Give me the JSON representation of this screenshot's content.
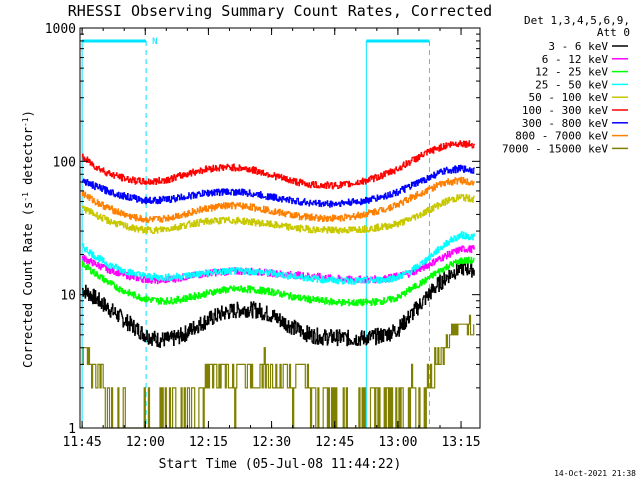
{
  "chart_data": {
    "type": "line",
    "title": "RHESSI Observing Summary Count Rates, Corrected",
    "xlabel": "Start Time (05-Jul-08 11:44:22)",
    "ylabel_prefix": "Corrected Count Rate (s",
    "ylabel_sup1": "-1",
    "ylabel_mid": " detector",
    "ylabel_sup2": "-1",
    "ylabel_suffix": ")",
    "y_scale": "log",
    "ylim": [
      1,
      1000
    ],
    "xlim_min": [
      -0.5,
      94.5
    ],
    "x_ticks": [
      {
        "min": 0,
        "label": "11:45"
      },
      {
        "min": 15,
        "label": "12:00"
      },
      {
        "min": 30,
        "label": "12:15"
      },
      {
        "min": 45,
        "label": "12:30"
      },
      {
        "min": 60,
        "label": "12:45"
      },
      {
        "min": 75,
        "label": "13:00"
      },
      {
        "min": 90,
        "label": "13:15"
      }
    ],
    "y_ticks": [
      {
        "value": 1,
        "label": "1"
      },
      {
        "value": 10,
        "label": "10"
      },
      {
        "value": 100,
        "label": "100"
      },
      {
        "value": 1000,
        "label": "1000"
      }
    ],
    "legend_header": [
      "Det 1,3,4,5,6,9,",
      "Att 0"
    ],
    "legend_position": "right",
    "night_intervals": [
      {
        "start_min": 0,
        "end_min": 15.2,
        "label": "N"
      },
      {
        "start_min": 67.5,
        "end_min": 82.5,
        "label": ""
      }
    ],
    "saa_lines_min": [
      0,
      15.2,
      67.5,
      82.5
    ],
    "night_bar_color": "#00e5ff",
    "timestamp": "14-Oct-2021 21:38",
    "series": [
      {
        "name": "3 - 6 keV",
        "color": "#000000",
        "x": [
          0,
          3,
          6,
          9,
          12,
          15,
          18,
          21,
          24,
          27,
          30,
          33,
          36,
          39,
          42,
          45,
          48,
          51,
          54,
          57,
          60,
          63,
          66,
          69,
          72,
          75,
          78,
          81,
          84,
          87,
          90,
          93
        ],
        "y": [
          11,
          9.5,
          8,
          6.8,
          5.8,
          5.0,
          4.6,
          4.6,
          5.0,
          5.8,
          6.5,
          7.2,
          7.6,
          7.8,
          7.6,
          7.0,
          6.2,
          5.5,
          5.0,
          4.8,
          4.8,
          4.7,
          4.7,
          4.8,
          5.0,
          5.5,
          7.0,
          9.0,
          11.5,
          14.0,
          16.0,
          15.5
        ]
      },
      {
        "name": "6 - 12 keV",
        "color": "#ff00ff",
        "x": [
          0,
          3,
          6,
          9,
          12,
          15,
          18,
          21,
          24,
          27,
          30,
          33,
          36,
          39,
          42,
          45,
          48,
          51,
          54,
          57,
          60,
          63,
          66,
          69,
          72,
          75,
          78,
          81,
          84,
          87,
          90,
          93
        ],
        "y": [
          19,
          17,
          15.5,
          14.5,
          13.5,
          13.0,
          12.8,
          13.0,
          13.5,
          14.0,
          14.5,
          14.8,
          15.0,
          15.0,
          14.8,
          14.5,
          14.2,
          14.0,
          13.8,
          13.5,
          13.2,
          13.0,
          13.0,
          13.0,
          13.2,
          13.8,
          14.5,
          16.0,
          18.0,
          20.0,
          22.0,
          22.0
        ]
      },
      {
        "name": "12 - 25 keV",
        "color": "#00ff00",
        "x": [
          0,
          3,
          6,
          9,
          12,
          15,
          18,
          21,
          24,
          27,
          30,
          33,
          36,
          39,
          42,
          45,
          48,
          51,
          54,
          57,
          60,
          63,
          66,
          69,
          72,
          75,
          78,
          81,
          84,
          87,
          90,
          93
        ],
        "y": [
          17,
          14.5,
          12.5,
          11.0,
          10.0,
          9.3,
          9.0,
          9.0,
          9.3,
          9.8,
          10.3,
          10.8,
          11.0,
          11.0,
          10.8,
          10.5,
          10.0,
          9.5,
          9.2,
          9.0,
          8.8,
          8.7,
          8.7,
          8.8,
          9.0,
          9.5,
          11.0,
          12.5,
          14.5,
          16.5,
          18.0,
          18.0
        ]
      },
      {
        "name": "25 - 50 keV",
        "color": "#00ffff",
        "x": [
          0,
          3,
          6,
          9,
          12,
          15,
          18,
          21,
          24,
          27,
          30,
          33,
          36,
          39,
          42,
          45,
          48,
          51,
          54,
          57,
          60,
          63,
          66,
          69,
          72,
          75,
          78,
          81,
          84,
          87,
          90,
          93
        ],
        "y": [
          23,
          19.5,
          17,
          15.5,
          14.5,
          13.8,
          13.5,
          13.5,
          13.8,
          14.2,
          14.6,
          14.9,
          15.0,
          15.0,
          14.8,
          14.5,
          14.0,
          13.6,
          13.3,
          13.0,
          12.8,
          12.7,
          12.7,
          12.8,
          13.0,
          13.5,
          15.0,
          17.5,
          21.0,
          25.0,
          28.0,
          27.0
        ]
      },
      {
        "name": "50 - 100 keV",
        "color": "#c8c800",
        "x": [
          0,
          3,
          6,
          9,
          12,
          15,
          18,
          21,
          24,
          27,
          30,
          33,
          36,
          39,
          42,
          45,
          48,
          51,
          54,
          57,
          60,
          63,
          66,
          69,
          72,
          75,
          78,
          81,
          84,
          87,
          90,
          93
        ],
        "y": [
          45,
          40,
          36,
          33.5,
          31.5,
          30.5,
          30.5,
          31.5,
          33.0,
          34.5,
          35.5,
          36.0,
          36.0,
          35.5,
          34.5,
          33.5,
          32.5,
          31.5,
          31.0,
          30.5,
          30.5,
          30.5,
          31.0,
          31.5,
          32.5,
          34.0,
          37.0,
          41.0,
          46.0,
          51.0,
          54.0,
          52.0
        ]
      },
      {
        "name": "100 - 300 keV",
        "color": "#ff0000",
        "x": [
          0,
          3,
          6,
          9,
          12,
          15,
          18,
          21,
          24,
          27,
          30,
          33,
          36,
          39,
          42,
          45,
          48,
          51,
          54,
          57,
          60,
          63,
          66,
          69,
          72,
          75,
          78,
          81,
          84,
          87,
          90,
          93
        ],
        "y": [
          108,
          92,
          82,
          76,
          72,
          70,
          71,
          74,
          79,
          84,
          88,
          90,
          90,
          88,
          84,
          79,
          74,
          70,
          67,
          66,
          66,
          67,
          70,
          74,
          80,
          88,
          100,
          112,
          124,
          133,
          137,
          133
        ]
      },
      {
        "name": "300 - 800 keV",
        "color": "#0000ff",
        "x": [
          0,
          3,
          6,
          9,
          12,
          15,
          18,
          21,
          24,
          27,
          30,
          33,
          36,
          39,
          42,
          45,
          48,
          51,
          54,
          57,
          60,
          63,
          66,
          69,
          72,
          75,
          78,
          81,
          84,
          87,
          90,
          93
        ],
        "y": [
          72,
          65,
          60,
          56,
          53,
          51,
          51,
          52,
          54,
          56,
          58,
          59,
          59,
          58,
          56,
          54,
          52,
          50,
          49,
          48,
          48,
          49,
          50,
          52,
          55,
          59,
          65,
          72,
          80,
          86,
          88,
          86
        ]
      },
      {
        "name": "800 - 7000 keV",
        "color": "#ff8000",
        "x": [
          0,
          3,
          6,
          9,
          12,
          15,
          18,
          21,
          24,
          27,
          30,
          33,
          36,
          39,
          42,
          45,
          48,
          51,
          54,
          57,
          60,
          63,
          66,
          69,
          72,
          75,
          78,
          81,
          84,
          87,
          90,
          93
        ],
        "y": [
          58,
          50,
          45,
          41,
          38,
          36.5,
          36.5,
          38,
          40,
          42.5,
          44.5,
          46,
          46.5,
          46,
          44.5,
          42.5,
          40.5,
          39,
          38,
          37.5,
          37.5,
          38,
          39.5,
          41.5,
          44,
          47.5,
          53,
          59,
          65,
          70,
          72,
          70
        ]
      },
      {
        "name": "7000 - 15000 keV",
        "color": "#808000",
        "x": [
          0,
          1,
          2,
          3,
          4,
          5,
          6,
          7,
          8,
          9,
          10,
          11,
          12,
          14,
          16,
          18,
          20,
          22,
          24,
          26,
          28,
          30,
          32,
          34,
          36,
          38,
          40,
          42,
          44,
          46,
          48,
          50,
          52,
          54,
          56,
          58,
          60,
          62,
          64,
          66,
          68,
          70,
          72,
          74,
          76,
          78,
          80,
          82,
          84,
          86,
          88,
          90,
          92,
          93
        ],
        "y": [
          3,
          4,
          3,
          2,
          3,
          2,
          1,
          2,
          1,
          1,
          2,
          1,
          1,
          1,
          1,
          1,
          1,
          2,
          1,
          2,
          1,
          3,
          2,
          3,
          2,
          3,
          2,
          3,
          3,
          2,
          3,
          2,
          3,
          2,
          1,
          2,
          1,
          1,
          1,
          1,
          1,
          2,
          1,
          1,
          1,
          2,
          1,
          2,
          3,
          4,
          5,
          6,
          6,
          5
        ]
      }
    ]
  }
}
